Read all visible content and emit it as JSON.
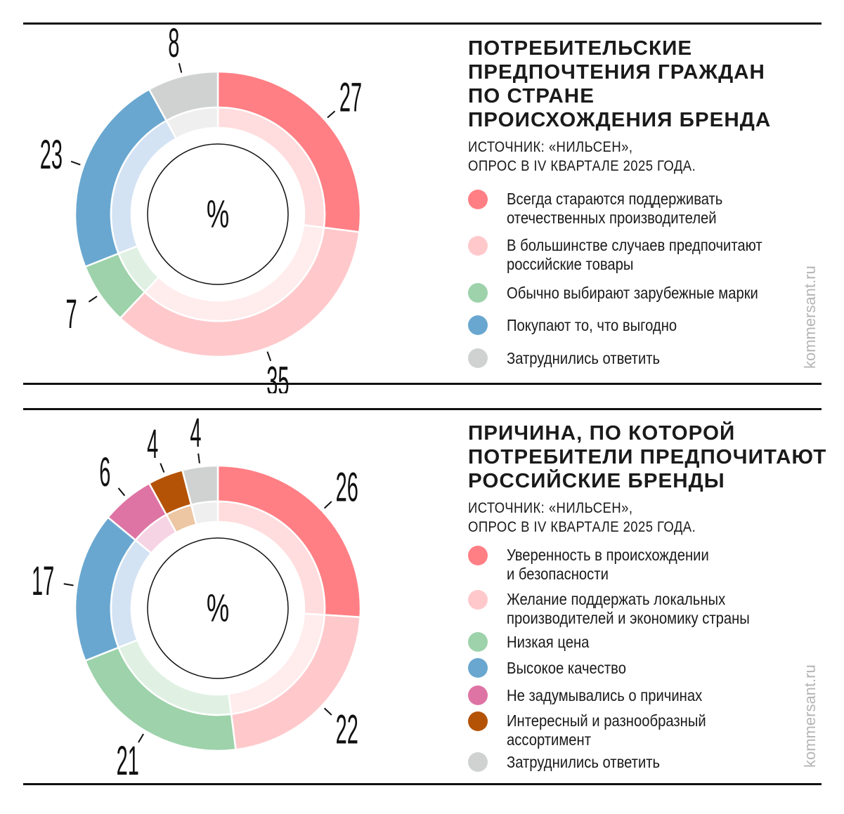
{
  "chart_data": [
    {
      "type": "pie",
      "variant": "donut",
      "title": "ПОТРЕБИТЕЛЬСКИЕ ПРЕДПОЧТЕНИЯ ГРАЖДАН ПО СТРАНЕ ПРОИСХОЖДЕНИЯ БРЕНДА",
      "title_lines": [
        "ПОТРЕБИТЕЛЬСКИЕ",
        "ПРЕДПОЧТЕНИЯ ГРАЖДАН",
        "ПО СТРАНЕ",
        "ПРОИСХОЖДЕНИЯ БРЕНДА"
      ],
      "source_lines": [
        "ИСТОЧНИК: «НИЛЬСЕН»,",
        "ОПРОС В IV КВАРТАЛЕ 2025 ГОДА."
      ],
      "center_label": "%",
      "legend_position": "right",
      "slices": [
        {
          "label_lines": [
            "Всегда стараются поддерживать",
            "отечественных производителей"
          ],
          "value": 27,
          "color": "#ff7f84",
          "light": "#ffdcdd"
        },
        {
          "label_lines": [
            "В большинстве случаев предпочитают",
            "российские товары"
          ],
          "value": 35,
          "color": "#ffc9cc",
          "light": "#ffeced"
        },
        {
          "label_lines": [
            "Обычно выбирают зарубежные марки"
          ],
          "value": 7,
          "color": "#9dd2aa",
          "light": "#e0f1e4"
        },
        {
          "label_lines": [
            "Покупают то, что выгодно"
          ],
          "value": 23,
          "color": "#69a7d0",
          "light": "#d4e3f3"
        },
        {
          "label_lines": [
            "Затруднились ответить"
          ],
          "value": 8,
          "color": "#d0d2d2",
          "light": "#efefef"
        }
      ],
      "watermark": "kommersant.ru"
    },
    {
      "type": "pie",
      "variant": "donut",
      "title": "ПРИЧИНА, ПО КОТОРОЙ ПОТРЕБИТЕЛИ ПРЕДПОЧИТАЮТ РОССИЙСКИЕ БРЕНДЫ",
      "title_lines": [
        "ПРИЧИНА, ПО КОТОРОЙ",
        "ПОТРЕБИТЕЛИ ПРЕДПОЧИТАЮТ",
        "РОССИЙСКИЕ БРЕНДЫ"
      ],
      "source_lines": [
        "ИСТОЧНИК: «НИЛЬСЕН»,",
        "ОПРОС В IV КВАРТАЛЕ 2025 ГОДА."
      ],
      "center_label": "%",
      "legend_position": "right",
      "slices": [
        {
          "label_lines": [
            "Уверенность в происхождении",
            "и безопасности"
          ],
          "value": 26,
          "color": "#ff7f84",
          "light": "#ffdcdd"
        },
        {
          "label_lines": [
            "Желание поддержать локальных",
            "производителей и экономику страны"
          ],
          "value": 22,
          "color": "#ffc9cc",
          "light": "#ffeced"
        },
        {
          "label_lines": [
            "Низкая цена"
          ],
          "value": 21,
          "color": "#9dd2aa",
          "light": "#e0f1e4"
        },
        {
          "label_lines": [
            "Высокое качество"
          ],
          "value": 17,
          "color": "#69a7d0",
          "light": "#d4e3f3"
        },
        {
          "label_lines": [
            "Не задумывались о причинах"
          ],
          "value": 6,
          "color": "#de74a4",
          "light": "#f6d4e4"
        },
        {
          "label_lines": [
            "Интересный и разнообразный",
            "ассортимент"
          ],
          "value": 4,
          "color": "#b45306",
          "light": "#edc6a3"
        },
        {
          "label_lines": [
            "Затруднились ответить"
          ],
          "value": 4,
          "color": "#d0d2d2",
          "light": "#efefef"
        }
      ],
      "watermark": "kommersant.ru"
    }
  ]
}
